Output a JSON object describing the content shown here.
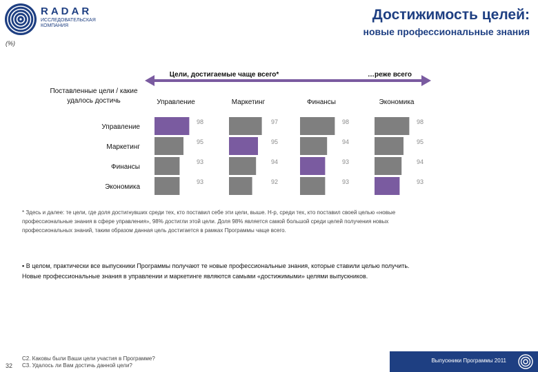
{
  "header": {
    "brand": "RADAR",
    "brand_sub": "ИССЛЕДОВАТЕЛЬСКАЯ КОМПАНИЯ",
    "title": "Достижимость целей:",
    "subtitle": "новые профессиональные знания",
    "unit": "(%)"
  },
  "chart_data": {
    "type": "bar",
    "frequency_axis": {
      "left_label": "Цели, достигаемые чаще всего*",
      "right_label": "…реже всего"
    },
    "row_header": "Поставленные цели / какие удалось достичь",
    "columns": [
      "Управление",
      "Маркетинг",
      "Финансы",
      "Экономика"
    ],
    "rows": [
      "Управление",
      "Маркетинг",
      "Финансы",
      "Экономика"
    ],
    "values": [
      [
        98,
        97,
        98,
        98
      ],
      [
        95,
        95,
        94,
        95
      ],
      [
        93,
        94,
        93,
        94
      ],
      [
        93,
        92,
        93,
        93
      ]
    ],
    "highlight_diagonal": true,
    "colors": {
      "bar": "#7f7f7f",
      "highlight": "#7a5ba0",
      "label": "#8c8c8c",
      "arrow": "#7a5ba0"
    }
  },
  "note": [
    "* Здесь и далее: те цели, где доля достигнувших среди тех, кто поставил себе эти цели, выше. Н-р, среди тех, кто поставил своей целью «новые",
    "профессиональные знания в сфере управления», 98% достигли этой цели. Доля 98% является самой большой среди целей получения новых",
    "профессиональных знаний, таким образом данная цель достигается в рамках Программы чаще всего."
  ],
  "summary": [
    "▪ В целом, практически все выпускники Программы получают те новые профессиональные знания, которые ставили целью получить.",
    "Новые профессиональные знания в управлении и маркетинге являются самыми «достижимыми» целями выпускников."
  ],
  "footer": {
    "page_number": "32",
    "questions": [
      "С2. Каковы были Ваши цели участия в Программе?",
      "С3. Удалось ли Вам достичь данной цели?"
    ],
    "caption": "Выпускники Программы 2011"
  }
}
